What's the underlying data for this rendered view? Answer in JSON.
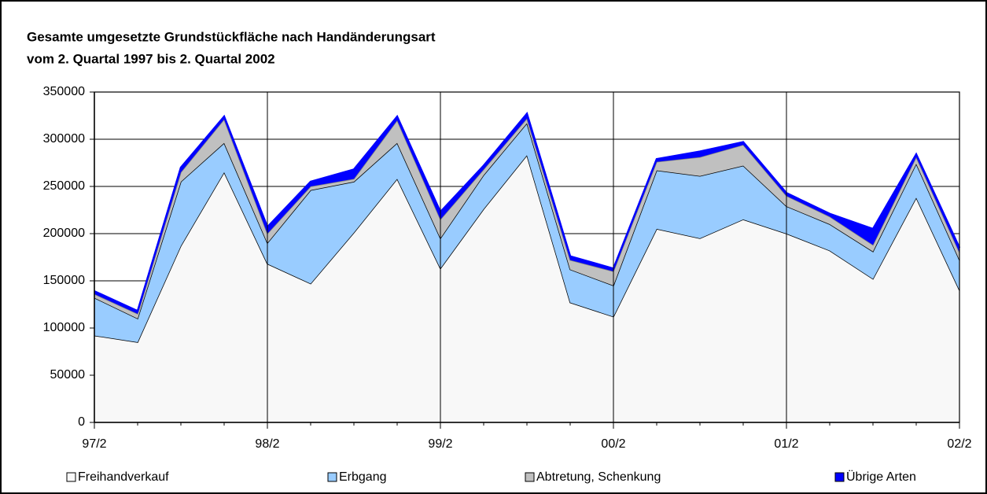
{
  "chart_data": {
    "type": "stacked-area",
    "title": "Gesamte umgesetzte Grundstückfläche nach Handänderungsart",
    "subtitle": "vom 2. Quartal 1997 bis 2. Quartal 2002",
    "categories": [
      "97/2",
      null,
      null,
      null,
      "98/2",
      null,
      null,
      null,
      "99/2",
      null,
      null,
      null,
      "00/2",
      null,
      null,
      null,
      "01/2",
      null,
      null,
      null,
      "02/2"
    ],
    "series": [
      {
        "name": "Freihandverkauf",
        "color": "#f8f8f8",
        "line_color": "#000000",
        "values": [
          92000,
          85000,
          187000,
          265000,
          168000,
          147000,
          201000,
          258000,
          163000,
          226000,
          283000,
          127000,
          112000,
          205000,
          195000,
          215000,
          200000,
          182000,
          152000,
          238000,
          140000
        ]
      },
      {
        "name": "Erbgang",
        "color": "#99ccff",
        "line_color": "#000000",
        "values": [
          40000,
          25000,
          68000,
          31000,
          22000,
          99000,
          54000,
          38000,
          32000,
          36000,
          34000,
          35000,
          33000,
          62000,
          66000,
          57000,
          29000,
          28000,
          29000,
          36000,
          32000
        ]
      },
      {
        "name": "Abtretung, Schenkung",
        "color": "#c0c0c0",
        "line_color": "#808080",
        "values": [
          4000,
          5000,
          10000,
          25000,
          10000,
          4000,
          3000,
          24000,
          20000,
          6000,
          5000,
          10000,
          15000,
          9000,
          20000,
          22000,
          11000,
          8000,
          7000,
          7000,
          8000
        ]
      },
      {
        "name": "Übrige Arten",
        "color": "#0000ff",
        "line_color": "#0000ff",
        "values": [
          3000,
          3000,
          5000,
          3000,
          7000,
          5000,
          10000,
          4000,
          8000,
          4000,
          5000,
          4000,
          3000,
          3000,
          6000,
          3000,
          3000,
          3000,
          17000,
          3000,
          5000
        ]
      }
    ],
    "ylim": [
      0,
      350000
    ],
    "yticks": [
      0,
      50000,
      100000,
      150000,
      200000,
      250000,
      300000,
      350000
    ],
    "grid": true,
    "legend": "bottom"
  }
}
